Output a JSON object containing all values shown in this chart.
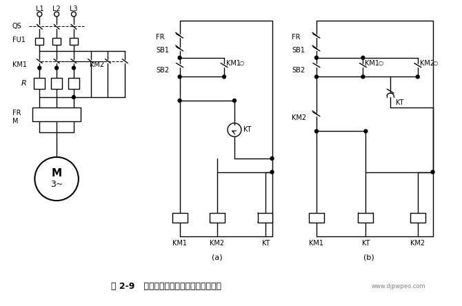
{
  "title": "图 2-9   定子电路串电阻降压启动控制线路",
  "watermark": "www.djpwpeo.com",
  "bg_color": "#ffffff",
  "line_color": "#000000",
  "fig_width": 6.7,
  "fig_height": 4.44,
  "dpi": 100,
  "label_a": "(a)",
  "label_b": "(b)",
  "title_fontsize": 9,
  "label_fontsize": 8
}
